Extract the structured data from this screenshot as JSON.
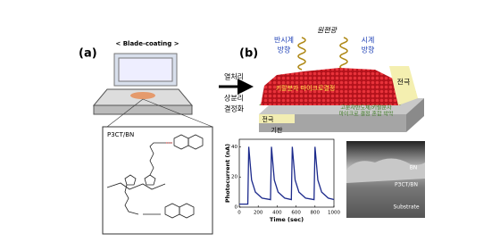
{
  "panel_a": {
    "label": "(a)",
    "process": "< Blade-coating >",
    "material": "P3CT/BN"
  },
  "arrow": {
    "steps": [
      "열처리",
      "상분리",
      "결정화"
    ]
  },
  "panel_b": {
    "label": "(b)",
    "light": "원편광",
    "left_rotation": [
      "반시계",
      "방향"
    ],
    "right_rotation": [
      "시계",
      "방향"
    ],
    "top_electrode": "전극",
    "crystal_label": "키랄분자 마이크로결정",
    "film_label": [
      "고분자반도체/키랄분자",
      "마이크로 결정 혼합 박막"
    ],
    "bottom_electrode": "전극",
    "substrate": "기판"
  },
  "sem": {
    "labels": [
      "BN",
      "P3CT/BN",
      "Substrate"
    ]
  },
  "chart_data": {
    "type": "line",
    "x_label": "Time (sec)",
    "y_label": "Photocurrent (nA)",
    "x": [
      0,
      90,
      100,
      130,
      170,
      240,
      330,
      340,
      370,
      410,
      480,
      550,
      560,
      590,
      630,
      700,
      790,
      800,
      830,
      870,
      940,
      1000
    ],
    "series": [
      {
        "color": "#1c2a8c",
        "values": [
          2,
          2,
          40,
          18,
          10,
          6,
          5,
          40,
          18,
          10,
          6,
          5,
          40,
          18,
          10,
          6,
          5,
          40,
          18,
          10,
          6,
          5
        ]
      }
    ],
    "xlim": [
      0,
      1000
    ],
    "xticks": [
      0,
      200,
      400,
      600,
      800,
      1000
    ],
    "ylim": [
      0,
      45
    ],
    "yticks": [
      0,
      20,
      40
    ]
  }
}
